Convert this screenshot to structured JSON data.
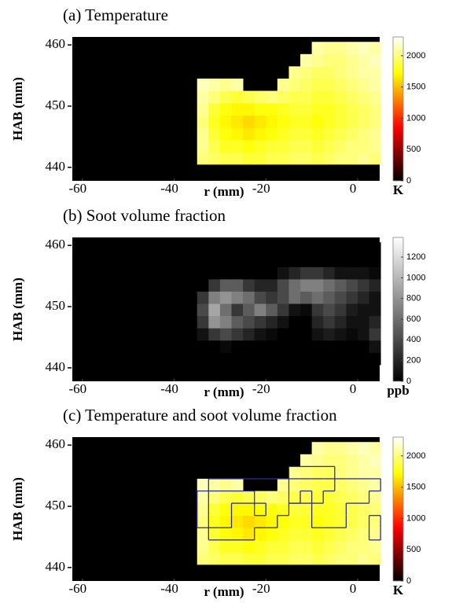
{
  "chart_data": [
    {
      "type": "heatmap",
      "title": "(a) Temperature",
      "x_label": "r (mm)",
      "y_label": "HAB (mm)",
      "xlim": [
        -62.2,
        4.8
      ],
      "ylim": [
        437.8,
        461.3
      ],
      "xticks": [
        -60,
        -40,
        -20,
        0
      ],
      "yticks": [
        440,
        450,
        460
      ],
      "colormap": "hot",
      "clim": [
        0,
        2300
      ],
      "cticks": [
        0,
        500,
        1000,
        1500,
        2000
      ],
      "colorbar_label": "K",
      "x": [
        -33.75,
        -31.25,
        -28.75,
        -26.25,
        -23.75,
        -21.25,
        -18.75,
        -16.25,
        -13.75,
        -11.25,
        -8.75,
        -6.25,
        -3.75,
        -1.25,
        1.25,
        3.75
      ],
      "y": [
        441.5,
        443.5,
        445.5,
        447.5,
        449.5,
        451.5,
        453.5,
        455.5,
        457.5,
        459.5
      ],
      "z": [
        [
          2000,
          1950,
          1900,
          1900,
          1850,
          1850,
          1900,
          1900,
          1950,
          1950,
          1900,
          1950,
          2000,
          2000,
          2050,
          2000
        ],
        [
          2050,
          1900,
          1800,
          1800,
          1750,
          1800,
          1850,
          1850,
          1900,
          1900,
          1850,
          1900,
          1950,
          2000,
          2000,
          2050
        ],
        [
          2050,
          1850,
          1750,
          1700,
          1650,
          1700,
          1750,
          1800,
          1850,
          1850,
          1800,
          1850,
          1900,
          1950,
          2000,
          2050
        ],
        [
          2000,
          1800,
          1700,
          1650,
          1600,
          1650,
          1700,
          1750,
          1800,
          1800,
          1750,
          1800,
          1850,
          1900,
          1950,
          2000
        ],
        [
          2050,
          1850,
          1750,
          1700,
          1700,
          1750,
          1750,
          1800,
          1850,
          1850,
          1800,
          1800,
          1850,
          1900,
          1950,
          2000
        ],
        [
          2100,
          2000,
          1900,
          1850,
          1900,
          1950,
          2000,
          1950,
          1900,
          1900,
          1850,
          1850,
          1900,
          1950,
          2000,
          2050
        ],
        [
          2150,
          2100,
          2050,
          2100,
          null,
          null,
          null,
          2050,
          2000,
          1950,
          1900,
          1900,
          1950,
          2000,
          2050,
          2100
        ],
        [
          null,
          null,
          null,
          null,
          null,
          null,
          null,
          null,
          2050,
          2000,
          1950,
          1950,
          2000,
          2050,
          2100,
          2100
        ],
        [
          null,
          null,
          null,
          null,
          null,
          null,
          null,
          null,
          null,
          2100,
          2050,
          2000,
          2000,
          2050,
          2100,
          2150
        ],
        [
          null,
          null,
          null,
          null,
          null,
          null,
          null,
          null,
          null,
          null,
          2100,
          2050,
          2050,
          2100,
          2150,
          2100
        ]
      ]
    },
    {
      "type": "heatmap",
      "title": "(b) Soot volume fraction",
      "x_label": "r (mm)",
      "y_label": "HAB (mm)",
      "xlim": [
        -62.2,
        4.8
      ],
      "ylim": [
        437.8,
        461.3
      ],
      "xticks": [
        -60,
        -40,
        -20,
        0
      ],
      "yticks": [
        440,
        450,
        460
      ],
      "colormap": "gray",
      "clim": [
        0,
        1390
      ],
      "cticks": [
        0,
        200,
        400,
        600,
        800,
        1000,
        1200
      ],
      "colorbar_label": "ppb",
      "x": [
        -33.75,
        -31.25,
        -28.75,
        -26.25,
        -23.75,
        -21.25,
        -18.75,
        -16.25,
        -13.75,
        -11.25,
        -8.75,
        -6.25,
        -3.75,
        -1.25,
        1.25,
        3.75
      ],
      "y": [
        441.5,
        443.5,
        445.5,
        447.5,
        449.5,
        451.5,
        453.5,
        455.5,
        457.5,
        459.5
      ],
      "z": [
        [
          0,
          0,
          0,
          0,
          0,
          0,
          0,
          0,
          0,
          0,
          0,
          0,
          0,
          0,
          0,
          0
        ],
        [
          0,
          0,
          50,
          0,
          0,
          0,
          0,
          0,
          0,
          0,
          0,
          0,
          0,
          0,
          0,
          100
        ],
        [
          100,
          300,
          400,
          300,
          200,
          100,
          50,
          0,
          0,
          0,
          100,
          150,
          100,
          50,
          100,
          300
        ],
        [
          300,
          800,
          700,
          500,
          400,
          300,
          200,
          100,
          0,
          0,
          200,
          300,
          200,
          100,
          100,
          200
        ],
        [
          400,
          900,
          600,
          300,
          500,
          700,
          500,
          300,
          100,
          50,
          300,
          400,
          300,
          150,
          100,
          100
        ],
        [
          300,
          700,
          800,
          700,
          600,
          400,
          300,
          400,
          600,
          500,
          600,
          500,
          400,
          300,
          200,
          100
        ],
        [
          0,
          300,
          500,
          500,
          300,
          200,
          200,
          400,
          600,
          700,
          700,
          600,
          500,
          400,
          300,
          200
        ],
        [
          0,
          0,
          0,
          0,
          0,
          0,
          0,
          100,
          200,
          300,
          300,
          200,
          100,
          100,
          100,
          50
        ],
        [
          0,
          0,
          0,
          0,
          0,
          0,
          0,
          0,
          0,
          0,
          0,
          0,
          0,
          0,
          0,
          0
        ],
        [
          0,
          0,
          0,
          0,
          0,
          0,
          0,
          0,
          0,
          0,
          0,
          0,
          0,
          0,
          0,
          0
        ]
      ]
    },
    {
      "type": "heatmap",
      "title": "(c) Temperature and soot volume fraction",
      "x_label": "r (mm)",
      "y_label": "HAB (mm)",
      "xlim": [
        -62.2,
        4.8
      ],
      "ylim": [
        437.8,
        461.3
      ],
      "xticks": [
        -60,
        -40,
        -20,
        0
      ],
      "yticks": [
        440,
        450,
        460
      ],
      "colormap": "hot",
      "clim": [
        0,
        2300
      ],
      "cticks": [
        0,
        500,
        1000,
        1500,
        2000
      ],
      "colorbar_label": "K",
      "x": [
        -33.75,
        -31.25,
        -28.75,
        -26.25,
        -23.75,
        -21.25,
        -18.75,
        -16.25,
        -13.75,
        -11.25,
        -8.75,
        -6.25,
        -3.75,
        -1.25,
        1.25,
        3.75
      ],
      "y": [
        441.5,
        443.5,
        445.5,
        447.5,
        449.5,
        451.5,
        453.5,
        455.5,
        457.5,
        459.5
      ],
      "z": [
        [
          2000,
          1950,
          1900,
          1900,
          1850,
          1850,
          1900,
          1900,
          1950,
          1950,
          1900,
          1950,
          2000,
          2000,
          2050,
          2000
        ],
        [
          2050,
          1900,
          1800,
          1800,
          1750,
          1800,
          1850,
          1850,
          1900,
          1900,
          1850,
          1900,
          1950,
          2000,
          2000,
          2050
        ],
        [
          2050,
          1850,
          1750,
          1700,
          1650,
          1700,
          1750,
          1800,
          1850,
          1850,
          1800,
          1850,
          1900,
          1950,
          2000,
          2050
        ],
        [
          2000,
          1800,
          1700,
          1650,
          1600,
          1650,
          1700,
          1750,
          1800,
          1800,
          1750,
          1800,
          1850,
          1900,
          1950,
          2000
        ],
        [
          2050,
          1850,
          1750,
          1700,
          1700,
          1750,
          1750,
          1800,
          1850,
          1850,
          1800,
          1800,
          1850,
          1900,
          1950,
          2000
        ],
        [
          2100,
          2000,
          1900,
          1850,
          1900,
          1950,
          2000,
          1950,
          1900,
          1900,
          1850,
          1850,
          1900,
          1950,
          2000,
          2050
        ],
        [
          2150,
          2100,
          2050,
          2100,
          null,
          null,
          null,
          2050,
          2000,
          1950,
          1900,
          1900,
          1950,
          2000,
          2050,
          2100
        ],
        [
          null,
          null,
          null,
          null,
          null,
          null,
          null,
          null,
          2050,
          2000,
          1950,
          1950,
          2000,
          2050,
          2100,
          2100
        ],
        [
          null,
          null,
          null,
          null,
          null,
          null,
          null,
          null,
          null,
          2100,
          2050,
          2000,
          2000,
          2050,
          2100,
          2150
        ],
        [
          null,
          null,
          null,
          null,
          null,
          null,
          null,
          null,
          null,
          null,
          2100,
          2050,
          2050,
          2100,
          2150,
          2100
        ]
      ],
      "contour": {
        "color": "#2e2e8a",
        "levels": [
          200,
          600
        ],
        "z": [
          [
            0,
            0,
            0,
            0,
            0,
            0,
            0,
            0,
            0,
            0,
            0,
            0,
            0,
            0,
            0,
            0
          ],
          [
            0,
            0,
            50,
            0,
            0,
            0,
            0,
            0,
            0,
            0,
            0,
            0,
            0,
            0,
            0,
            100
          ],
          [
            100,
            300,
            400,
            300,
            200,
            100,
            50,
            0,
            0,
            0,
            100,
            150,
            100,
            50,
            100,
            300
          ],
          [
            300,
            800,
            700,
            500,
            400,
            300,
            200,
            100,
            0,
            0,
            200,
            300,
            200,
            100,
            100,
            200
          ],
          [
            400,
            900,
            600,
            300,
            500,
            700,
            500,
            300,
            100,
            50,
            300,
            400,
            300,
            150,
            100,
            100
          ],
          [
            300,
            700,
            800,
            700,
            600,
            400,
            300,
            400,
            600,
            500,
            600,
            500,
            400,
            300,
            200,
            100
          ],
          [
            0,
            300,
            500,
            500,
            300,
            200,
            200,
            400,
            600,
            700,
            700,
            600,
            500,
            400,
            300,
            200
          ],
          [
            0,
            0,
            0,
            0,
            0,
            0,
            0,
            100,
            200,
            300,
            300,
            200,
            100,
            100,
            100,
            50
          ],
          [
            0,
            0,
            0,
            0,
            0,
            0,
            0,
            0,
            0,
            0,
            0,
            0,
            0,
            0,
            0,
            0
          ],
          [
            0,
            0,
            0,
            0,
            0,
            0,
            0,
            0,
            0,
            0,
            0,
            0,
            0,
            0,
            0,
            0
          ]
        ]
      }
    }
  ]
}
